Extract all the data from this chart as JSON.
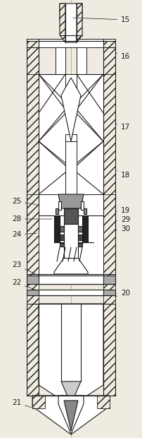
{
  "bg_color": "#f0ebe0",
  "lc": "#1a1a1a",
  "hatch_density": "///",
  "figsize": [
    2.02,
    6.2
  ],
  "dpi": 100
}
